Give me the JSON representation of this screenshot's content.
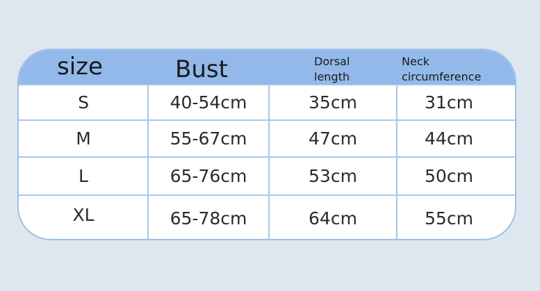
{
  "header": {
    "size": "size",
    "bust": "Bust",
    "dorsal": "Dorsal length",
    "dorsal_1": "Dorsal",
    "dorsal_2": "length",
    "neck_1": "Neck",
    "neck_2": "circumference"
  },
  "rows": [
    {
      "size": "S",
      "bust": "40-54cm",
      "dorsal": "35cm",
      "neck": "31cm"
    },
    {
      "size": "M",
      "bust": "55-67cm",
      "dorsal": "47cm",
      "neck": "44cm"
    },
    {
      "size": "L",
      "bust": "65-76cm",
      "dorsal": "53cm",
      "neck": "50cm"
    },
    {
      "size": "XL",
      "bust": "65-78cm",
      "dorsal": "64cm",
      "neck": "55cm"
    }
  ],
  "colors": {
    "header": "#93b9ea",
    "border": "#a9c6ea",
    "background": "#dde7ef"
  }
}
